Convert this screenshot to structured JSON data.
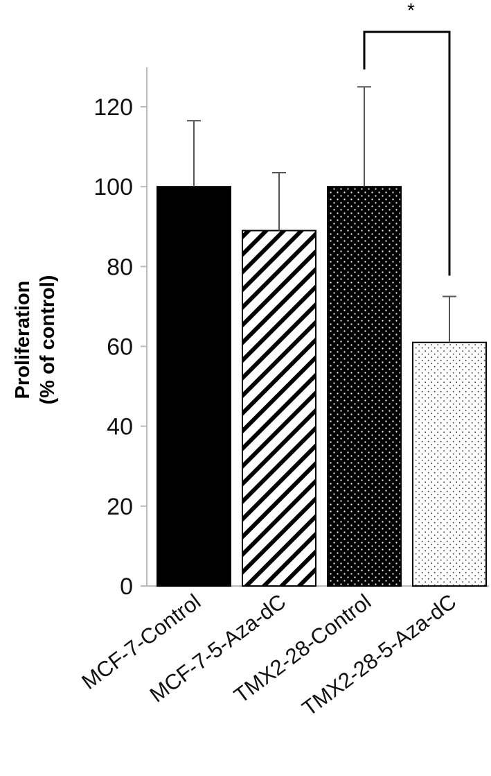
{
  "chart_data": {
    "type": "bar",
    "ylabel_lines": [
      "Proliferation",
      "(% of control)"
    ],
    "categories": [
      "MCF-7-Control",
      "MCF-7-5-Aza-dC",
      "TMX2-28-Control",
      "TMX2-28-5-Aza-dC"
    ],
    "values": [
      100,
      89,
      100,
      61
    ],
    "error_bars_upper": [
      16.5,
      14.5,
      25,
      11.5
    ],
    "bar_fills": [
      "solid-black",
      "diagonal-hatch",
      "black-with-white-dots",
      "white-with-dark-dots"
    ],
    "ylim": [
      0,
      130
    ],
    "yticks": [
      0,
      20,
      40,
      60,
      80,
      100,
      120
    ],
    "grid": false,
    "significance": {
      "between": [
        2,
        3
      ],
      "label": "*"
    }
  },
  "colors": {
    "bar_dark": "#000000",
    "axis": "#bbbbbb",
    "stroke": "#000000"
  }
}
